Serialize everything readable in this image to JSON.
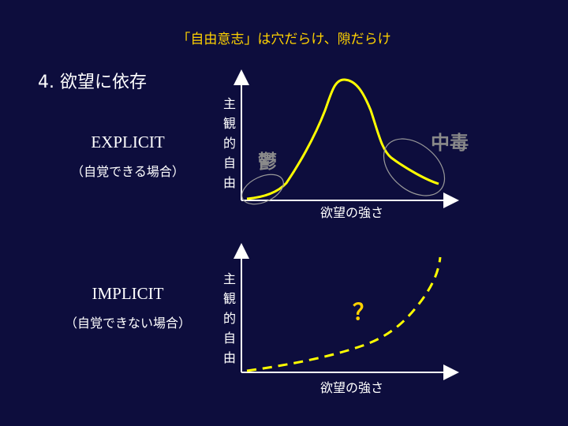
{
  "title": "「自由意志」は穴だらけ、隙だらけ",
  "heading": "4. 欲望に依存",
  "explicit": {
    "name": "EXPLICIT",
    "subtitle": "（自覚できる場合）",
    "y_axis_chars": [
      "主",
      "観",
      "的",
      "自",
      "由"
    ],
    "x_axis_label": "欲望の強さ",
    "annotation_left": "鬱",
    "annotation_right": "中毒"
  },
  "implicit": {
    "name": "IMPLICIT",
    "subtitle": "（自覚できない場合）",
    "y_axis_chars": [
      "主",
      "観",
      "的",
      "自",
      "由"
    ],
    "x_axis_label": "欲望の強さ",
    "annotation": "？"
  },
  "colors": {
    "background": "#0d0d3d",
    "accent": "#ffd200",
    "curve": "#ffff00",
    "annotation_gray": "#8a8a8a",
    "axis": "#ffffff",
    "ellipse": "#9a9a9a"
  }
}
